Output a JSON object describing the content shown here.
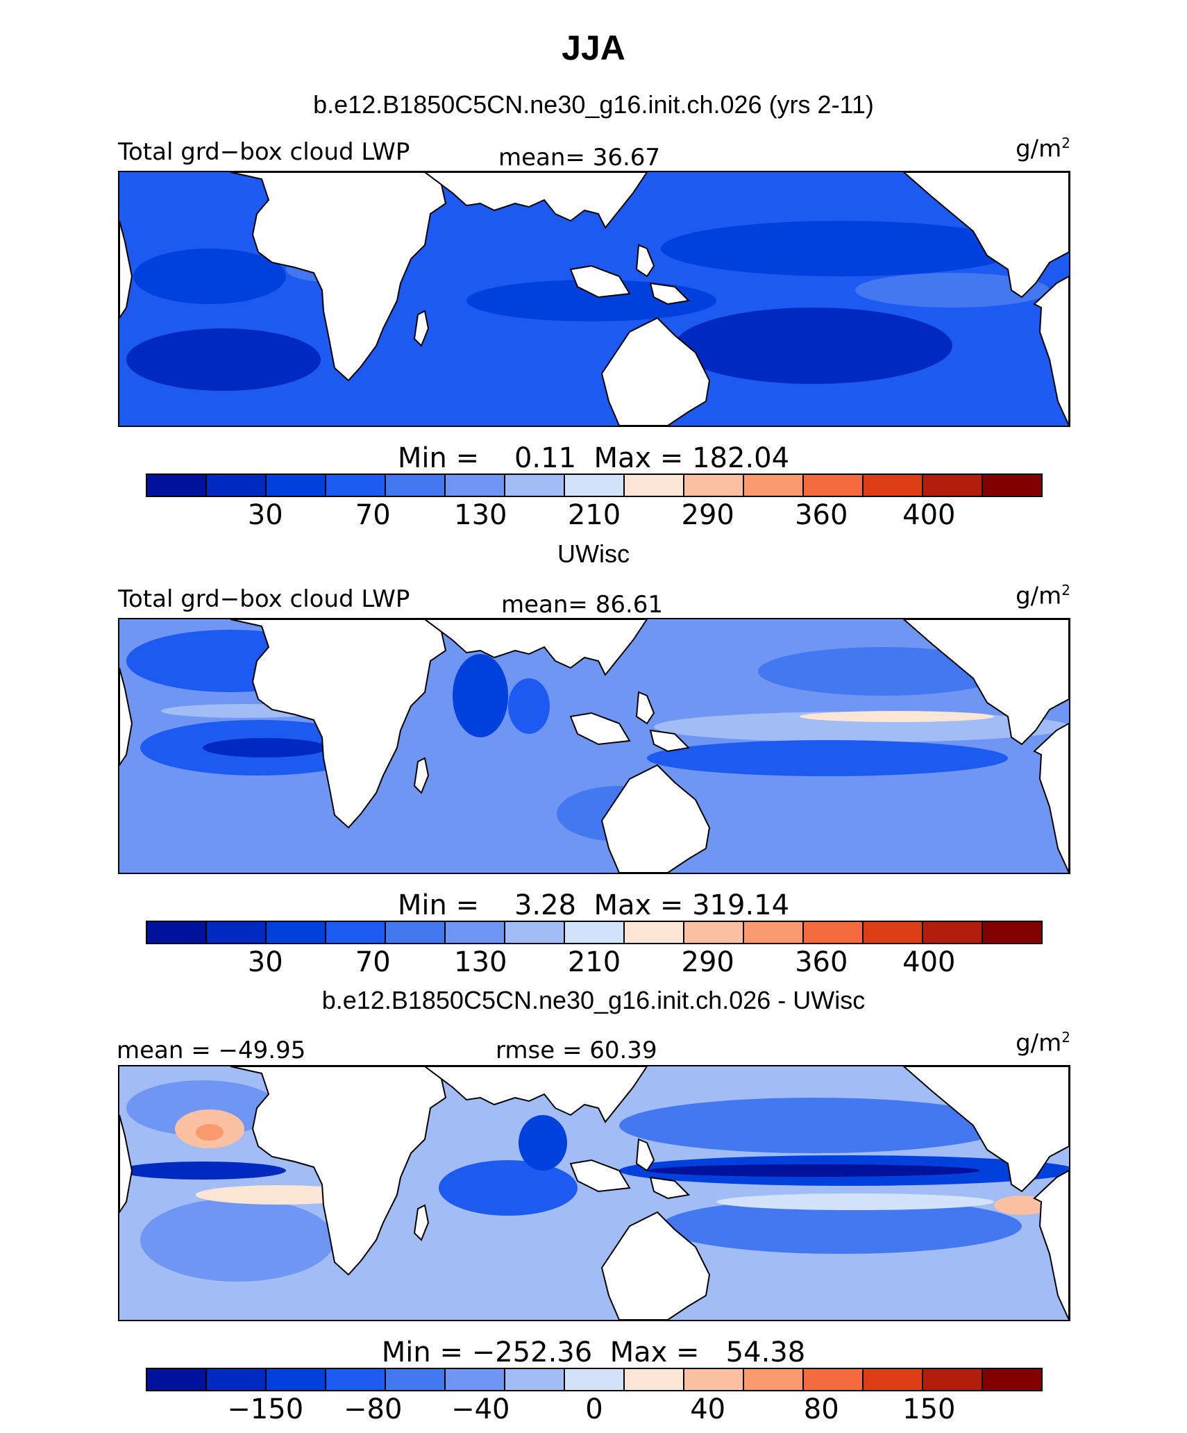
{
  "title": "JJA",
  "colors": {
    "palette": [
      "#00129b",
      "#0029bf",
      "#0040dc",
      "#1c5af2",
      "#4478f0",
      "#6f96f3",
      "#a2bdf6",
      "#d2e3fb",
      "#fde6d6",
      "#fcc0a2",
      "#fa9a6f",
      "#f36b3e",
      "#dc3d14",
      "#b21c0b",
      "#810000"
    ],
    "land": "#ffffff",
    "coast": "#000000"
  },
  "panels": [
    {
      "case_title": "b.e12.B1850C5CN.ne30_g16.init.ch.026 (yrs 2-11)",
      "left_label": "Total grd−box cloud LWP",
      "center_label": "mean=  36.67",
      "units": "g/m",
      "units_sup": "2",
      "minmax": "Min =    0.11  Max = 182.04",
      "tick_labels": [
        "30",
        "70",
        "130",
        "210",
        "290",
        "360",
        "400"
      ]
    },
    {
      "case_title": "UWisc",
      "left_label": "Total grd−box cloud LWP",
      "center_label": "mean=  86.61",
      "units": "g/m",
      "units_sup": "2",
      "minmax": "Min =    3.28  Max = 319.14",
      "tick_labels": [
        "30",
        "70",
        "130",
        "210",
        "290",
        "360",
        "400"
      ]
    },
    {
      "case_title": "b.e12.B1850C5CN.ne30_g16.init.ch.026 - UWisc",
      "left_label": "mean = −49.95",
      "center_label": "rmse =   60.39",
      "units": "g/m",
      "units_sup": "2",
      "minmax": "Min = −252.36  Max =   54.38",
      "tick_labels": [
        "−150",
        "−80",
        "−40",
        "0",
        "40",
        "80",
        "150"
      ]
    }
  ]
}
